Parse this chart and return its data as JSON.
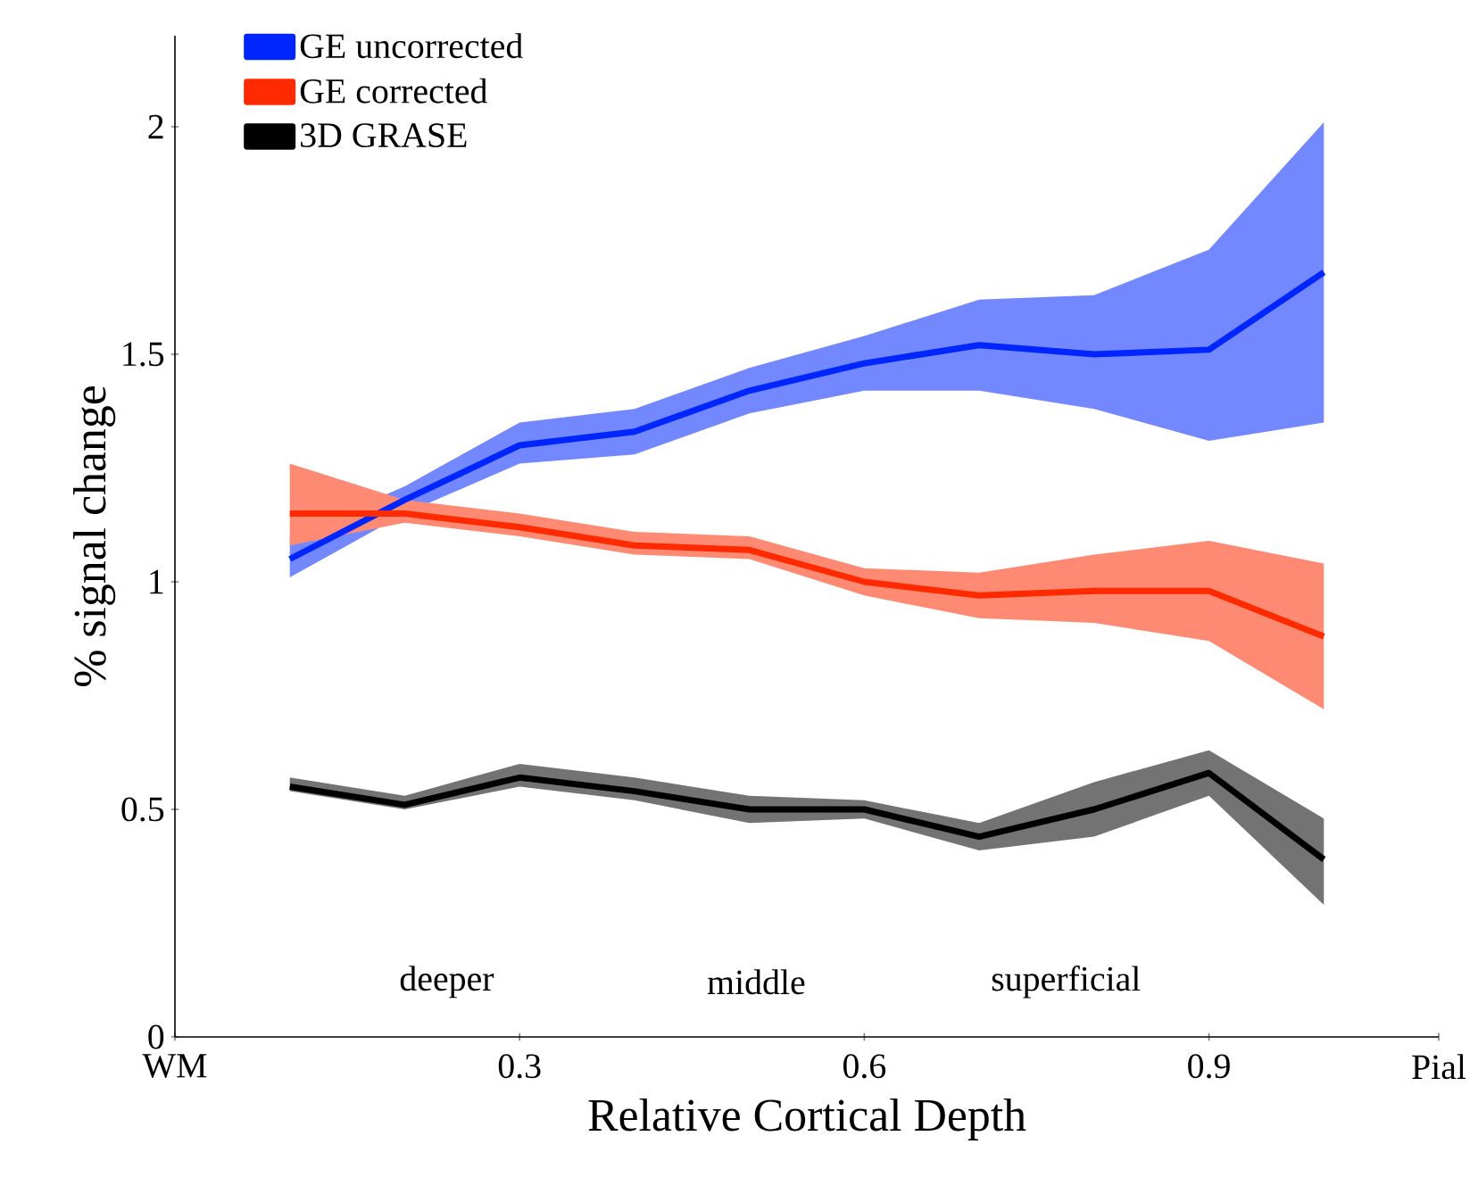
{
  "chart_data": {
    "type": "line",
    "xlabel": "Relative Cortical Depth",
    "ylabel": "% signal change",
    "x": [
      0.1,
      0.2,
      0.3,
      0.4,
      0.5,
      0.6,
      0.7,
      0.8,
      0.9,
      1.0
    ],
    "series": [
      {
        "name": "GE uncorrected",
        "color": "#0026ff",
        "values": [
          1.05,
          1.18,
          1.3,
          1.33,
          1.42,
          1.48,
          1.52,
          1.5,
          1.51,
          1.68
        ],
        "lower": [
          1.01,
          1.15,
          1.26,
          1.28,
          1.37,
          1.42,
          1.42,
          1.38,
          1.31,
          1.35
        ],
        "upper": [
          1.1,
          1.21,
          1.35,
          1.38,
          1.47,
          1.54,
          1.62,
          1.63,
          1.73,
          2.01
        ]
      },
      {
        "name": "GE corrected",
        "color": "#ff2a00",
        "values": [
          1.15,
          1.15,
          1.12,
          1.08,
          1.07,
          1.0,
          0.97,
          0.98,
          0.98,
          0.88
        ],
        "lower": [
          1.08,
          1.13,
          1.1,
          1.06,
          1.05,
          0.97,
          0.92,
          0.91,
          0.87,
          0.72
        ],
        "upper": [
          1.26,
          1.18,
          1.15,
          1.11,
          1.1,
          1.03,
          1.02,
          1.06,
          1.09,
          1.04
        ]
      },
      {
        "name": "3D GRASE",
        "color": "#000000",
        "values": [
          0.55,
          0.51,
          0.57,
          0.54,
          0.5,
          0.5,
          0.44,
          0.5,
          0.58,
          0.39
        ],
        "lower": [
          0.54,
          0.5,
          0.55,
          0.52,
          0.47,
          0.48,
          0.41,
          0.44,
          0.53,
          0.29
        ],
        "upper": [
          0.57,
          0.53,
          0.6,
          0.57,
          0.53,
          0.52,
          0.47,
          0.56,
          0.63,
          0.48
        ]
      }
    ],
    "xlim": [
      0,
      1.1
    ],
    "ylim": [
      0,
      2.2
    ],
    "xticks": [
      {
        "value": 0,
        "label": "WM"
      },
      0.3,
      0.6,
      0.9,
      {
        "value": 1.1,
        "label": "Pial"
      }
    ],
    "yticks": [
      0,
      0.5,
      1,
      1.5,
      2
    ],
    "annotations": [
      "deeper",
      "middle",
      "superficial"
    ],
    "legend": "top left",
    "grid": false,
    "marker": "none",
    "line_style": "solid"
  }
}
